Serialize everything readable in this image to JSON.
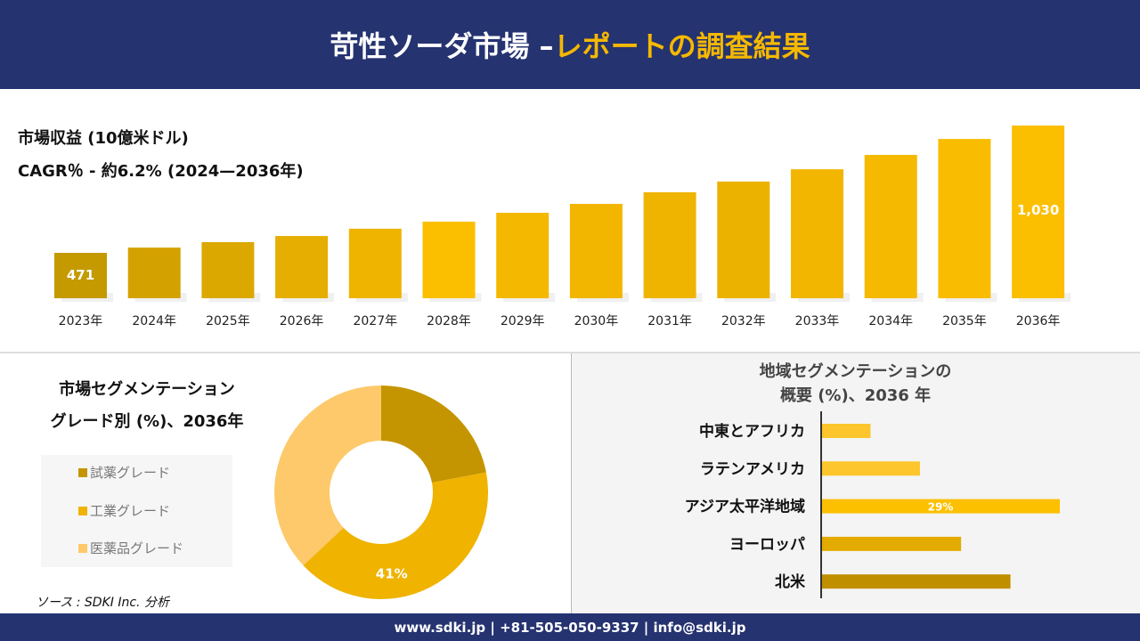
{
  "header": {
    "title_main": "苛性ソーダ市場 –",
    "title_accent": "レポートの調査結果"
  },
  "revenue": {
    "label": "市場収益 (10億米ドル)",
    "cagr": "CAGR％ - 約6.2% (2024—2036年)"
  },
  "grade": {
    "title_line1": "市場セグメンテーション",
    "title_line2": "グレード別 (%)、2036年"
  },
  "region": {
    "title_line1": "地域セグメンテーションの",
    "title_line2": "概要 (%)、2036 年"
  },
  "source": "ソース : SDKI Inc. 分析",
  "footer": "www.sdki.jp | +81-505-050-9337 | info@sdki.jp",
  "chart_data": [
    {
      "type": "bar",
      "title": "市場収益 (10億米ドル)",
      "categories": [
        "2023年",
        "2024年",
        "2025年",
        "2026年",
        "2027年",
        "2028年",
        "2029年",
        "2030年",
        "2031年",
        "2032年",
        "2033年",
        "2034年",
        "2035年",
        "2036年"
      ],
      "values": [
        471,
        494,
        518,
        545,
        577,
        608,
        647,
        686,
        737,
        784,
        838,
        901,
        971,
        1030
      ],
      "data_labels": {
        "2023年": "471",
        "2036年": "1,030"
      },
      "colors": [
        "#c49a00",
        "#d4a200",
        "#dba800",
        "#e5ae00",
        "#eeb400",
        "#fbbf00",
        "#f5b800",
        "#f2b600",
        "#efb400",
        "#ecb200",
        "#f2b600",
        "#f5b900",
        "#f9bc00",
        "#fbbf00"
      ]
    },
    {
      "type": "pie",
      "title": "市場セグメンテーション グレード別 (%)、2036年",
      "hole": true,
      "labels": [
        "試薬グレード",
        "工業グレード",
        "医薬品グレード"
      ],
      "values": [
        22,
        41,
        37
      ],
      "data_labels": {
        "工業グレード": "41%"
      },
      "colors": [
        "#c49500",
        "#efb300",
        "#fdc96a"
      ],
      "legend": "left"
    },
    {
      "type": "bar",
      "orientation": "horizontal",
      "title": "地域セグメンテーションの 概要 (%)、2036 年",
      "categories": [
        "中東とアフリカ",
        "ラテンアメリカ",
        "アジア太平洋地域",
        "ヨーロッパ",
        "北米"
      ],
      "values": [
        6,
        12,
        29,
        17,
        23
      ],
      "data_labels": {
        "アジア太平洋地域": "29%"
      },
      "colors": [
        "#fcc62c",
        "#fcc62c",
        "#fcc000",
        "#e3aa00",
        "#c08f00"
      ]
    }
  ]
}
